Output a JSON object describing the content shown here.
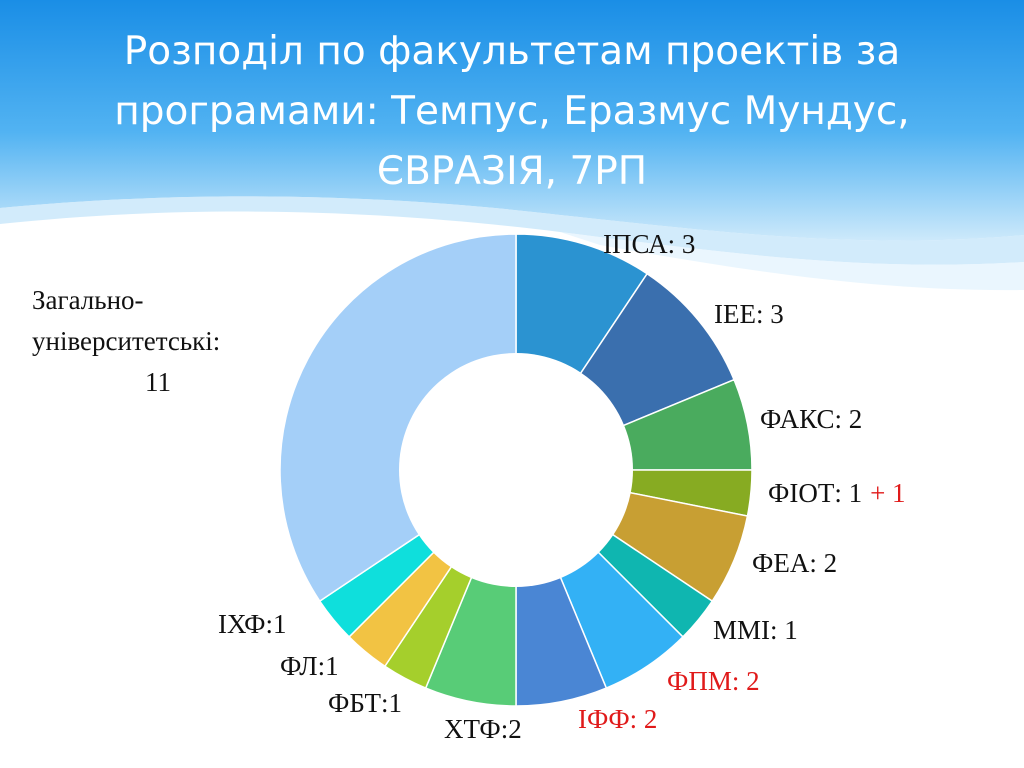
{
  "title": "Розподіл по факультетам проектів за програмами: Темпус, Еразмус Мундус, ЄВРАЗІЯ, 7РП",
  "colors": {
    "label": "#111111",
    "highlight": "#e01a1a"
  },
  "chart_data": {
    "type": "pie",
    "variant": "doughnut",
    "title": "",
    "slices": [
      {
        "name": "ІПСА",
        "value": 3,
        "color": "#2b93d1",
        "label": "ІПСА: 3"
      },
      {
        "name": "ІЕЕ",
        "value": 3,
        "color": "#3a6fae",
        "label": "ІЕЕ: 3"
      },
      {
        "name": "ФАКС",
        "value": 2,
        "color": "#4aab5e",
        "label": "ФАКС: 2"
      },
      {
        "name": "ФІОТ",
        "value": 1,
        "color": "#87ab22",
        "label": "ФІОТ: 1",
        "label_extra": "+ 1"
      },
      {
        "name": "ФЕА",
        "value": 2,
        "color": "#c89f33",
        "label": "ФЕА: 2"
      },
      {
        "name": "ММІ",
        "value": 1,
        "color": "#0fb6b0",
        "label": "ММІ: 1"
      },
      {
        "name": "ФПМ",
        "value": 2,
        "color": "#33b1f5",
        "label": "ФПМ: 2",
        "highlight": true
      },
      {
        "name": "ІФФ",
        "value": 2,
        "color": "#4a86d4",
        "label": "ІФФ: 2",
        "highlight": true
      },
      {
        "name": "ХТФ",
        "value": 2,
        "color": "#58cc77",
        "label": "ХТФ:2"
      },
      {
        "name": "ФБТ",
        "value": 1,
        "color": "#a5cf2c",
        "label": "ФБТ:1"
      },
      {
        "name": "ФЛ",
        "value": 1,
        "color": "#f2c343",
        "label": "ФЛ:1"
      },
      {
        "name": "ІХФ",
        "value": 1,
        "color": "#0fdfdc",
        "label": "ІХФ:1"
      },
      {
        "name": "Загально-університетські",
        "value": 11,
        "color": "#a4cff8",
        "label_lines": [
          "Загально-",
          "університетські:",
          "11"
        ]
      }
    ]
  }
}
